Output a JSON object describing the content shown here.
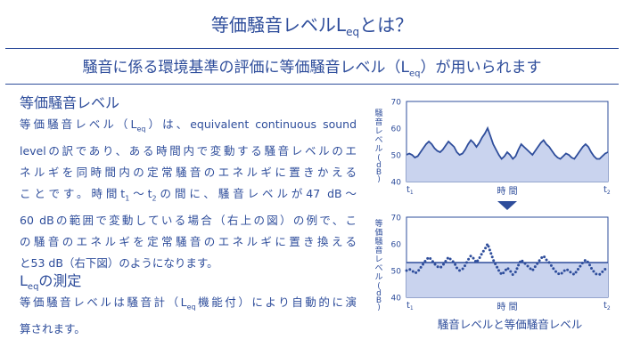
{
  "title": {
    "main": "等価騒音レベルL",
    "sub": "eq",
    "tail": "とは？"
  },
  "subtitle": {
    "main": "騒音に係る環境基準の評価に等価騒音レベル（L",
    "sub": "eq",
    "tail": "）が用いられます"
  },
  "section1": {
    "heading": "等価騒音レベル",
    "lines": [
      {
        "a": "等価騒音レベル（L",
        "sub": "eq",
        "b": "）は、equivalent  continuous  sound"
      },
      {
        "a": "levelの訳であり、ある時間内で変動する騒音レベルのエ"
      },
      {
        "a": "ネルギを同時間内の定常騒音のエネルギに置きかえる"
      },
      {
        "a": "ことです。時間t",
        "sub": "1",
        "b": "〜t",
        "sub2": "2",
        "c": "の間に、騒音レベルが47 dB〜"
      },
      {
        "a": "60 dBの範囲で変動している場合（右上の図）の例で、こ"
      },
      {
        "a": "の騒音のエネルギを定常騒音のエネルギに置き換える"
      },
      {
        "a": "と53 dB（右下図）のようになります。"
      }
    ]
  },
  "section2": {
    "heading_main": "L",
    "heading_sub": "eq",
    "heading_tail": "の測定",
    "lines": [
      {
        "a": "等価騒音レベルは騒音計（L",
        "sub": "eq",
        "b": "機能付）により自動的に演"
      },
      {
        "a": "算されます。"
      }
    ]
  },
  "charts": {
    "ylabel": "騒音レベル(dB)",
    "ylabel_bottom": "等価騒音レベル(dB)",
    "xlabel": "時 間",
    "t1": "t",
    "t1_sub": "1",
    "t2": "t",
    "t2_sub": "2",
    "caption": "騒音レベルと等価騒音レベル",
    "fill_color": "#c9d3ee",
    "line_color": "#2e4d9b"
  },
  "chart_data": [
    {
      "type": "area",
      "ylim": [
        40,
        70
      ],
      "yticks": [
        "70",
        "60",
        "50",
        "40"
      ],
      "xlabel": "時 間",
      "ylabel": "騒音レベル(dB)",
      "values": [
        50,
        50.5,
        50,
        49,
        49.5,
        51,
        52.5,
        54,
        55,
        54,
        52.5,
        51.5,
        51,
        52,
        53.5,
        55,
        54,
        53,
        51,
        50,
        50.5,
        52,
        54,
        55.5,
        54.5,
        53,
        54.5,
        56.5,
        58,
        60,
        57,
        54,
        52,
        50,
        48.5,
        49.5,
        51,
        50,
        48.5,
        49.5,
        52,
        54,
        53,
        52,
        51,
        50,
        51.5,
        53,
        54.5,
        55.5,
        54,
        53,
        51.5,
        50,
        49,
        48.5,
        49.5,
        50.5,
        50,
        49,
        48.5,
        50,
        51.5,
        53,
        54,
        53,
        51,
        49.5,
        48.5,
        48.5,
        49.5,
        50.5,
        51
      ]
    },
    {
      "type": "line",
      "ylim": [
        40,
        70
      ],
      "yticks": [
        "70",
        "60",
        "50",
        "40"
      ],
      "xlabel": "時 間",
      "ylabel": "等価騒音レベル(dB)",
      "leq": 53,
      "values": [
        50,
        50.5,
        50,
        49,
        49.5,
        51,
        52.5,
        54,
        55,
        54,
        52.5,
        51.5,
        51,
        52,
        53.5,
        55,
        54,
        53,
        51,
        50,
        50.5,
        52,
        54,
        55.5,
        54.5,
        53,
        54.5,
        56.5,
        58,
        60,
        57,
        54,
        52,
        50,
        48.5,
        49.5,
        51,
        50,
        48.5,
        49.5,
        52,
        54,
        53,
        52,
        51,
        50,
        51.5,
        53,
        54.5,
        55.5,
        54,
        53,
        51.5,
        50,
        49,
        48.5,
        49.5,
        50.5,
        50,
        49,
        48.5,
        50,
        51.5,
        53,
        54,
        53,
        51,
        49.5,
        48.5,
        48.5,
        49.5,
        50.5,
        51
      ]
    }
  ]
}
